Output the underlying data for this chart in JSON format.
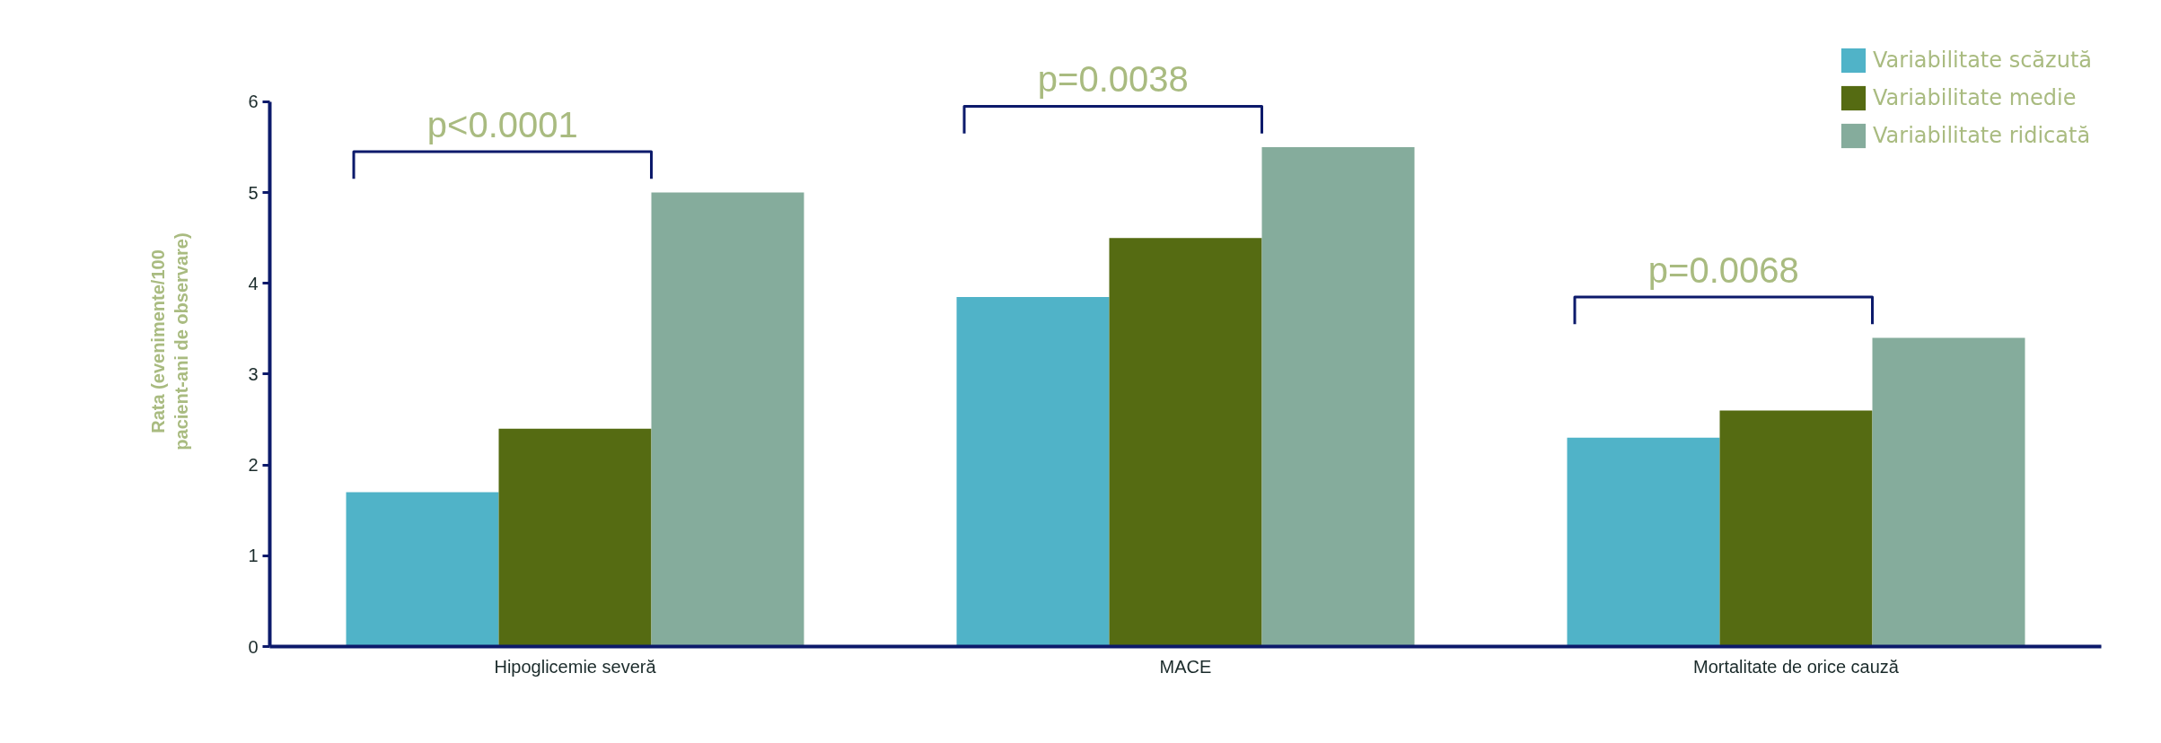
{
  "chart_data": {
    "type": "bar",
    "ylabel": "Rata (evenimente/100\npacient-ani de observare)",
    "categories": [
      "Hipoglicemie severă",
      "MACE",
      "Mortalitate de orice cauză"
    ],
    "series": [
      {
        "name": "Variabilitate scăzută",
        "color": "#50b3c8",
        "values": [
          1.7,
          3.85,
          2.3
        ]
      },
      {
        "name": "Variabilitate medie",
        "color": "#556b12",
        "values": [
          2.4,
          4.5,
          2.6
        ]
      },
      {
        "name": "Variabilitate ridicată",
        "color": "#85ac9c",
        "values": [
          5.0,
          5.5,
          3.4
        ]
      }
    ],
    "ylim": [
      0,
      6
    ],
    "yticks": [
      0,
      1,
      2,
      3,
      4,
      5,
      6
    ],
    "annotations": [
      "p<0.0001",
      "p=0.0038",
      "p=0.0068"
    ],
    "grid": false,
    "legend": "top right"
  }
}
